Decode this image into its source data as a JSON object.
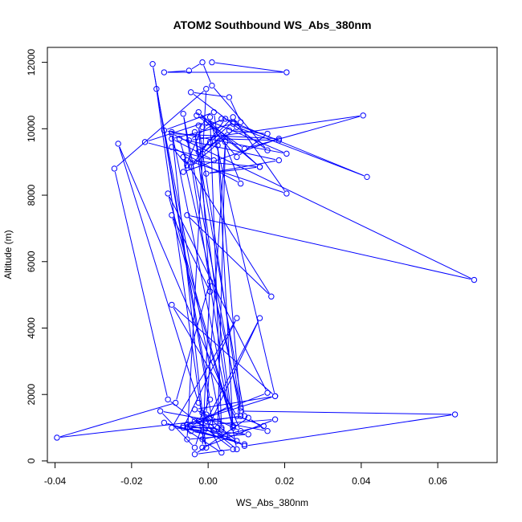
{
  "chart_data": {
    "type": "line",
    "title": "ATOM2 Southbound WS_Abs_380nm",
    "xlabel": "WS_Abs_380nm",
    "ylabel": "Altitude (m)",
    "xlim": [
      -0.042,
      0.0755
    ],
    "ylim": [
      -50,
      12450
    ],
    "x_ticks": [
      -0.04,
      -0.02,
      0.0,
      0.02,
      0.04,
      0.06
    ],
    "x_tick_labels": [
      "-0.04",
      "-0.02",
      "0.00",
      "0.02",
      "0.04",
      "0.06"
    ],
    "y_ticks": [
      0,
      2000,
      4000,
      6000,
      8000,
      10000,
      12000
    ],
    "y_tick_labels": [
      "0",
      "2000",
      "4000",
      "6000",
      "8000",
      "10000",
      "12000"
    ],
    "grid": false,
    "colors": {
      "series": "#0000ff",
      "axis": "#000000",
      "background": "#ffffff"
    },
    "series": [
      {
        "marker": "open-circle",
        "x": [
          0.001,
          0.0205,
          -0.0115,
          -0.005,
          -0.0015,
          0.001,
          0.0155,
          -0.0045,
          0.0055,
          0.0085,
          0.0035,
          -0.005,
          0.0405,
          0.0095,
          -0.003,
          0.0205,
          -0.0115,
          0.0015,
          0.0025,
          0.0185,
          0.0065,
          -0.0095,
          0.0015,
          -0.0165,
          -0.0005,
          0.0135,
          -0.0005,
          0.0185,
          -0.0075,
          -0.0055,
          -0.0095,
          0.0085,
          0.0035,
          -0.0015,
          0.0055,
          0.0155,
          0.0075,
          -0.0025,
          0.0135,
          -0.0055,
          0.0205,
          0.0065,
          -0.0025,
          0.0005,
          0.0065,
          0.0415,
          0.0075,
          -0.0045,
          0.0045,
          -0.0015,
          -0.0065,
          0.0185,
          -0.0095,
          0.0695,
          -0.0055,
          0.0165,
          -0.0065,
          0.0085,
          0.0025,
          0.0065,
          -0.0095,
          0.0005,
          -0.0025,
          0.0085,
          0.0645,
          0.0095,
          -0.0035,
          0.0175,
          0.0005,
          0.0035,
          -0.0065,
          0.0155,
          -0.0105,
          0.0065,
          -0.0035,
          0.0095,
          -0.0395,
          -0.0085,
          0.0005,
          -0.0015,
          0.0175,
          -0.0045,
          0.0055,
          -0.0065,
          0.0085,
          -0.0055,
          0.0045,
          -0.0005,
          0.0135,
          -0.0015,
          0.0145,
          0.0075,
          -0.0095,
          0.0175,
          -0.0035,
          0.0085,
          -0.0235,
          -0.0025,
          0.0035,
          -0.0065,
          0.0075,
          -0.0095,
          0.0105,
          -0.0055,
          -0.0005,
          -0.0245,
          -0.0105,
          0.0065,
          -0.0035,
          0.0105,
          0.0155,
          -0.0125,
          -0.0035,
          -0.0005,
          0.0045,
          0.0025,
          -0.0055,
          0.0095,
          -0.0115,
          -0.0045,
          0.0075,
          -0.0015,
          -0.0095,
          0.0075,
          0.0015,
          -0.0145,
          0.0005,
          -0.0025,
          -0.0005,
          -0.0135,
          0.0035
        ],
        "y": [
          12000,
          11700,
          11700,
          11750,
          12000,
          11300,
          9350,
          11100,
          10950,
          10200,
          10300,
          9650,
          10400,
          9400,
          10400,
          9250,
          9950,
          10500,
          9700,
          9650,
          10150,
          9700,
          9050,
          9600,
          10200,
          8850,
          8650,
          9050,
          9700,
          8900,
          9450,
          8350,
          9800,
          9250,
          9950,
          9850,
          9150,
          10500,
          8850,
          9050,
          8050,
          10350,
          9300,
          9600,
          10200,
          8550,
          10050,
          8850,
          10300,
          10050,
          8700,
          9700,
          9850,
          5450,
          7400,
          4950,
          9150,
          1600,
          9500,
          1000,
          7400,
          5100,
          10100,
          1500,
          1400,
          450,
          1200,
          1950,
          10350,
          950,
          1050,
          2050,
          8050,
          1050,
          9900,
          1350,
          700,
          1750,
          5400,
          400,
          1250,
          1050,
          1650,
          10450,
          1350,
          1100,
          750,
          1200,
          4300,
          650,
          1050,
          1350,
          4700,
          1950,
          1550,
          900,
          9550,
          1750,
          250,
          1000,
          4300,
          1000,
          800,
          650,
          11200,
          8800,
          1850,
          350,
          200,
          1300,
          900,
          1500,
          400,
          1400,
          9600,
          1000,
          1000,
          500,
          1150,
          900,
          600,
          1450,
          9900,
          350,
          900,
          11950,
          1850,
          1200,
          400,
          11200,
          1000
        ]
      }
    ]
  }
}
